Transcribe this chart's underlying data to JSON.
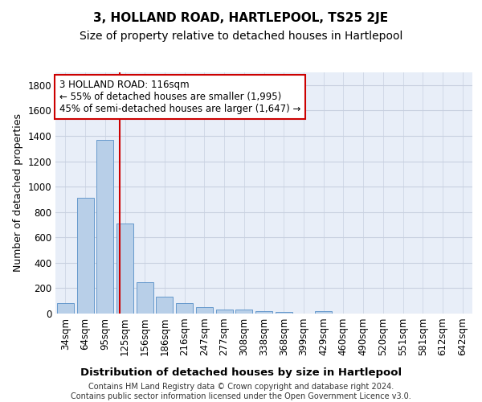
{
  "title": "3, HOLLAND ROAD, HARTLEPOOL, TS25 2JE",
  "subtitle": "Size of property relative to detached houses in Hartlepool",
  "xlabel": "Distribution of detached houses by size in Hartlepool",
  "ylabel": "Number of detached properties",
  "footer_line1": "Contains HM Land Registry data © Crown copyright and database right 2024.",
  "footer_line2": "Contains public sector information licensed under the Open Government Licence v3.0.",
  "bar_labels": [
    "34sqm",
    "64sqm",
    "95sqm",
    "125sqm",
    "156sqm",
    "186sqm",
    "216sqm",
    "247sqm",
    "277sqm",
    "308sqm",
    "338sqm",
    "368sqm",
    "399sqm",
    "429sqm",
    "460sqm",
    "490sqm",
    "520sqm",
    "551sqm",
    "581sqm",
    "612sqm",
    "642sqm"
  ],
  "bar_values": [
    80,
    910,
    1365,
    710,
    245,
    135,
    80,
    50,
    30,
    30,
    20,
    15,
    0,
    20,
    0,
    0,
    0,
    0,
    0,
    0,
    0
  ],
  "bar_color": "#b8cfe8",
  "bar_edge_color": "#6699cc",
  "background_color": "#e8eef8",
  "grid_color": "#c8d0e0",
  "vline_x": 2.72,
  "vline_color": "#cc0000",
  "annotation_text": "3 HOLLAND ROAD: 116sqm\n← 55% of detached houses are smaller (1,995)\n45% of semi-detached houses are larger (1,647) →",
  "annotation_box_color": "#ffffff",
  "annotation_box_edge": "#cc0000",
  "ylim": [
    0,
    1900
  ],
  "yticks": [
    0,
    200,
    400,
    600,
    800,
    1000,
    1200,
    1400,
    1600,
    1800
  ],
  "title_fontsize": 11,
  "subtitle_fontsize": 10,
  "xlabel_fontsize": 9.5,
  "ylabel_fontsize": 9,
  "tick_fontsize": 8.5,
  "annotation_fontsize": 8.5,
  "footer_fontsize": 7
}
